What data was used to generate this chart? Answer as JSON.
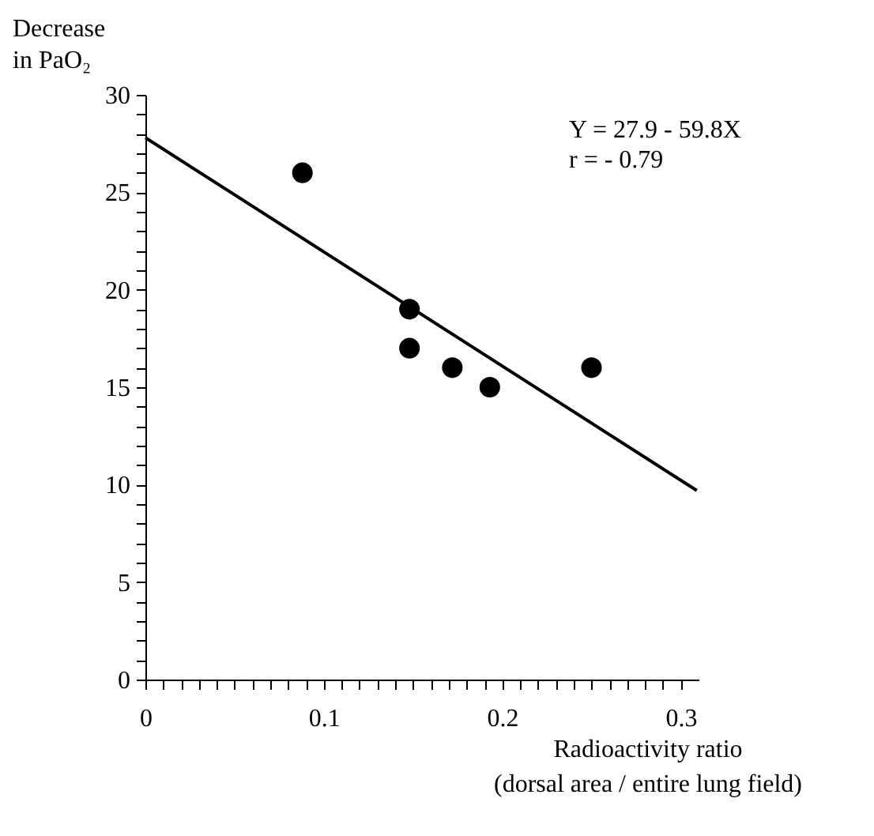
{
  "chart_data": {
    "type": "scatter",
    "xlabel": "Radioactivity ratio\n(dorsal area / entire lung field)",
    "ylabel": "Decrease\nin PaO₂",
    "annotations": [
      "Y = 27.9 - 59.8X",
      "r = - 0.79"
    ],
    "x": [
      0.088,
      0.148,
      0.148,
      0.172,
      0.193,
      0.25
    ],
    "series": [
      {
        "color": "#000000",
        "marker": "circle",
        "values": [
          26,
          19,
          17,
          16,
          15,
          16
        ]
      },
      {
        "type": "line",
        "color": "#000000",
        "marker": "none",
        "x": [
          0,
          0.309
        ],
        "values": [
          27.8,
          9.7
        ]
      }
    ],
    "grid": false,
    "xlim": [
      0,
      0.31
    ],
    "ylim": [
      0,
      30
    ],
    "xticks": [
      0,
      {
        "value": 0.01,
        "label": null
      },
      {
        "value": 0.02,
        "label": null
      },
      {
        "value": 0.03,
        "label": null
      },
      {
        "value": 0.04,
        "label": null
      },
      {
        "value": 0.05,
        "label": null
      },
      {
        "value": 0.06,
        "label": null
      },
      {
        "value": 0.07,
        "label": null
      },
      {
        "value": 0.08,
        "label": null
      },
      {
        "value": 0.09,
        "label": null
      },
      0.1,
      {
        "value": 0.11,
        "label": null
      },
      {
        "value": 0.12,
        "label": null
      },
      {
        "value": 0.13,
        "label": null
      },
      {
        "value": 0.14,
        "label": null
      },
      {
        "value": 0.15,
        "label": null
      },
      {
        "value": 0.16,
        "label": null
      },
      {
        "value": 0.17,
        "label": null
      },
      {
        "value": 0.18,
        "label": null
      },
      {
        "value": 0.19,
        "label": null
      },
      0.2,
      {
        "value": 0.21,
        "label": null
      },
      {
        "value": 0.22,
        "label": null
      },
      {
        "value": 0.23,
        "label": null
      },
      {
        "value": 0.24,
        "label": null
      },
      {
        "value": 0.25,
        "label": null
      },
      {
        "value": 0.26,
        "label": null
      },
      {
        "value": 0.27,
        "label": null
      },
      {
        "value": 0.28,
        "label": null
      },
      {
        "value": 0.29,
        "label": null
      },
      0.3
    ],
    "yticks": [
      0,
      {
        "value": 1,
        "label": null
      },
      {
        "value": 2,
        "label": null
      },
      {
        "value": 3,
        "label": null
      },
      {
        "value": 4,
        "label": null
      },
      5,
      {
        "value": 6,
        "label": null
      },
      {
        "value": 7,
        "label": null
      },
      {
        "value": 8,
        "label": null
      },
      {
        "value": 9,
        "label": null
      },
      10,
      {
        "value": 11,
        "label": null
      },
      {
        "value": 12,
        "label": null
      },
      {
        "value": 13,
        "label": null
      },
      {
        "value": 14,
        "label": null
      },
      15,
      {
        "value": 16,
        "label": null
      },
      {
        "value": 17,
        "label": null
      },
      {
        "value": 18,
        "label": null
      },
      {
        "value": 19,
        "label": null
      },
      20,
      {
        "value": 21,
        "label": null
      },
      {
        "value": 22,
        "label": null
      },
      {
        "value": 23,
        "label": null
      },
      {
        "value": 24,
        "label": null
      },
      25,
      {
        "value": 26,
        "label": null
      },
      {
        "value": 27,
        "label": null
      },
      {
        "value": 28,
        "label": null
      },
      {
        "value": 29,
        "label": null
      },
      30
    ]
  }
}
